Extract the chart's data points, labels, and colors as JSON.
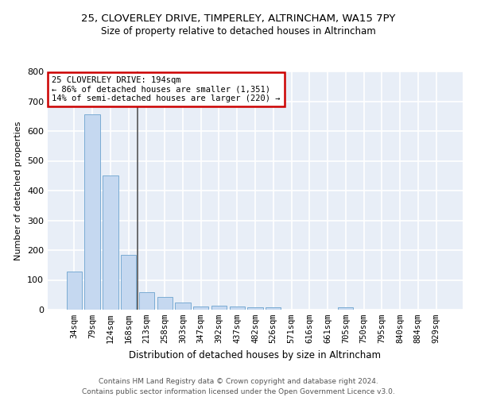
{
  "title1": "25, CLOVERLEY DRIVE, TIMPERLEY, ALTRINCHAM, WA15 7PY",
  "title2": "Size of property relative to detached houses in Altrincham",
  "xlabel": "Distribution of detached houses by size in Altrincham",
  "ylabel": "Number of detached properties",
  "categories": [
    "34sqm",
    "79sqm",
    "124sqm",
    "168sqm",
    "213sqm",
    "258sqm",
    "303sqm",
    "347sqm",
    "392sqm",
    "437sqm",
    "482sqm",
    "526sqm",
    "571sqm",
    "616sqm",
    "661sqm",
    "705sqm",
    "750sqm",
    "795sqm",
    "840sqm",
    "884sqm",
    "929sqm"
  ],
  "values": [
    128,
    657,
    452,
    185,
    60,
    43,
    25,
    12,
    13,
    11,
    9,
    7,
    0,
    0,
    0,
    8,
    0,
    0,
    0,
    0,
    0
  ],
  "bar_color": "#c5d8f0",
  "bar_edge_color": "#7bacd4",
  "annotation_line1": "25 CLOVERLEY DRIVE: 194sqm",
  "annotation_line2": "← 86% of detached houses are smaller (1,351)",
  "annotation_line3": "14% of semi-detached houses are larger (220) →",
  "vline_index": 3.5,
  "vline_color": "#555555",
  "box_edge_color": "#cc0000",
  "background_color": "#e8eef7",
  "grid_color": "#ffffff",
  "footer_line1": "Contains HM Land Registry data © Crown copyright and database right 2024.",
  "footer_line2": "Contains public sector information licensed under the Open Government Licence v3.0.",
  "ylim": [
    0,
    800
  ],
  "yticks": [
    0,
    100,
    200,
    300,
    400,
    500,
    600,
    700,
    800
  ],
  "title1_fontsize": 9.5,
  "title2_fontsize": 8.5,
  "xlabel_fontsize": 8.5,
  "ylabel_fontsize": 8,
  "tick_fontsize": 7.5
}
